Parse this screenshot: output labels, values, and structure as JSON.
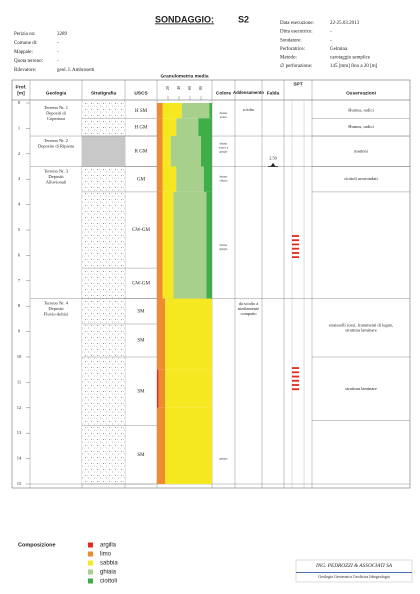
{
  "header": {
    "title": "SONDAGGIO:",
    "id": "S2",
    "left": [
      {
        "label": "Perizia no:",
        "value": "3289"
      },
      {
        "label": "Comune di:",
        "value": "-"
      },
      {
        "label": "Mappale:",
        "value": "-"
      },
      {
        "label": "Quota terreno:",
        "value": "-"
      },
      {
        "label": "Rilevatore:",
        "value": "geol. I. Ambrosetti"
      }
    ],
    "right": [
      {
        "label": "Data esecuzione:",
        "value": "22-25.03.2013"
      },
      {
        "label": "Ditta esecutrice:",
        "value": "-"
      },
      {
        "label": "Sondatore:",
        "value": "-"
      },
      {
        "label": "Perforatrice:",
        "value": "Gelmina"
      },
      {
        "label": "Metodo:",
        "value": "carotaggio semplice"
      },
      {
        "label": "∅ perforazione:",
        "value": "145  [mm]  fino a  20  [m]"
      }
    ]
  },
  "columns": {
    "prof": [
      "Prof.",
      "[m]"
    ],
    "geologia": "Geologia",
    "stratigrafia": "Stratigrafia",
    "uscs": "USCS",
    "colore": "Colore",
    "addensamento": "Addensamento",
    "falda": "Falda",
    "spt": "SPT",
    "osservazioni": "Osservazioni"
  },
  "depth_ticks": [
    0,
    1,
    2,
    3,
    4,
    5,
    6,
    7,
    8,
    9,
    10,
    11,
    12,
    13,
    14,
    15
  ],
  "geologia": [
    {
      "lines": [
        "Terreno Nr. 1",
        "Depositi di",
        "Copertura"
      ],
      "from": 0,
      "to": 1.3,
      "pattern": "dots"
    },
    {
      "lines": [
        "Terreno Nr. 2",
        "Deposito di Ripiena"
      ],
      "from": 1.3,
      "to": 2.5,
      "pattern": "fill"
    },
    {
      "lines": [
        "Terreno Nr. 3",
        "Depositi",
        "Alluvionali"
      ],
      "from": 2.5,
      "to": 7.7,
      "pattern": "dots"
    },
    {
      "lines": [
        "Terreno Nr. 4",
        "Depositi",
        "Fluvio-deltizi"
      ],
      "from": 7.7,
      "to": 15,
      "pattern": "dots"
    }
  ],
  "uscs": [
    {
      "code": "H SM",
      "from": 0,
      "to": 0.6
    },
    {
      "code": "H GM",
      "from": 0.6,
      "to": 1.3
    },
    {
      "code": "R GM",
      "from": 1.3,
      "to": 2.5
    },
    {
      "code": "GM",
      "from": 2.5,
      "to": 3.5
    },
    {
      "code": "GW-GM",
      "from": 3.5,
      "to": 6.5
    },
    {
      "code": "GW-GM",
      "from": 6.5,
      "to": 7.7
    },
    {
      "code": "SM",
      "from": 7.7,
      "to": 8.7
    },
    {
      "code": "SM",
      "from": 8.7,
      "to": 10
    },
    {
      "code": "SM",
      "from": 10,
      "to": 12.7
    },
    {
      "code": "SM",
      "from": 12.7,
      "to": 15
    }
  ],
  "granulometry": {
    "title": "Granulometria media",
    "ticks": [
      20,
      40,
      60,
      80
    ],
    "layers": [
      {
        "from": 0,
        "to": 0.6,
        "values": [
          0,
          10,
          35,
          50,
          5
        ]
      },
      {
        "from": 0.6,
        "to": 1.3,
        "values": [
          0,
          10,
          25,
          40,
          25
        ]
      },
      {
        "from": 1.3,
        "to": 2.5,
        "values": [
          0,
          10,
          15,
          55,
          20
        ]
      },
      {
        "from": 2.5,
        "to": 3.5,
        "values": [
          0,
          10,
          25,
          50,
          15
        ]
      },
      {
        "from": 3.5,
        "to": 7.7,
        "values": [
          0,
          10,
          20,
          60,
          10
        ]
      },
      {
        "from": 7.7,
        "to": 10.5,
        "values": [
          0,
          15,
          85,
          0,
          0
        ]
      },
      {
        "from": 10.5,
        "to": 12,
        "values": [
          3,
          12,
          85,
          0,
          0
        ]
      },
      {
        "from": 12,
        "to": 15,
        "values": [
          0,
          15,
          85,
          0,
          0
        ]
      }
    ]
  },
  "colore": [
    {
      "lines": [
        "bruno",
        "scuro"
      ],
      "depth": 0.4
    },
    {
      "lines": [
        "bruno",
        "scuro a",
        "grigio"
      ],
      "depth": 1.6
    },
    {
      "lines": [
        "bruno",
        "chiaro"
      ],
      "depth": 2.9
    },
    {
      "lines": [
        "bruno",
        "grigio"
      ],
      "depth": 5.6
    },
    {
      "lines": [
        "grigio"
      ],
      "depth": 14
    }
  ],
  "addensamento": [
    {
      "lines": [
        "sciolto"
      ],
      "depth": 0.15
    },
    {
      "lines": [
        "da sciolto a",
        "mediamente",
        "compatto"
      ],
      "depth": 7.8
    }
  ],
  "falda": {
    "label": "2.50",
    "depth": 2.5
  },
  "spt": [
    {
      "from": 5.2,
      "to": 6.2
    },
    {
      "from": 10.4,
      "to": 11.4
    }
  ],
  "osservazioni": [
    {
      "lines": [
        "Humus, radici"
      ],
      "from": 0,
      "to": 0.6
    },
    {
      "lines": [
        "Humus, radici"
      ],
      "from": 0.6,
      "to": 1.3
    },
    {
      "lines": [
        "mattoni"
      ],
      "from": 1.3,
      "to": 2.5
    },
    {
      "lines": [
        "ciottoli arrotondati"
      ],
      "from": 2.5,
      "to": 3.5
    },
    {
      "lines": [
        "straterelli rossi, frammenti di legno,",
        "struttura laminare"
      ],
      "from": 7.7,
      "to": 10
    },
    {
      "lines": [
        "struttura laminare"
      ],
      "from": 10,
      "to": 12.5
    }
  ],
  "legend": {
    "title": "Composizione",
    "items": [
      {
        "name": "argilla",
        "color": "#e42a1f"
      },
      {
        "name": "limo",
        "color": "#f08a2e"
      },
      {
        "name": "sabbia",
        "color": "#f5e821"
      },
      {
        "name": "ghiaia",
        "color": "#a8d08d"
      },
      {
        "name": "ciottoli",
        "color": "#3fae49"
      }
    ]
  },
  "company": {
    "name": "ING. PEDROZZI & ASSOCIATI SA",
    "subtitle": "Geologia Geotecnica Geofisica Idrogeologia"
  }
}
